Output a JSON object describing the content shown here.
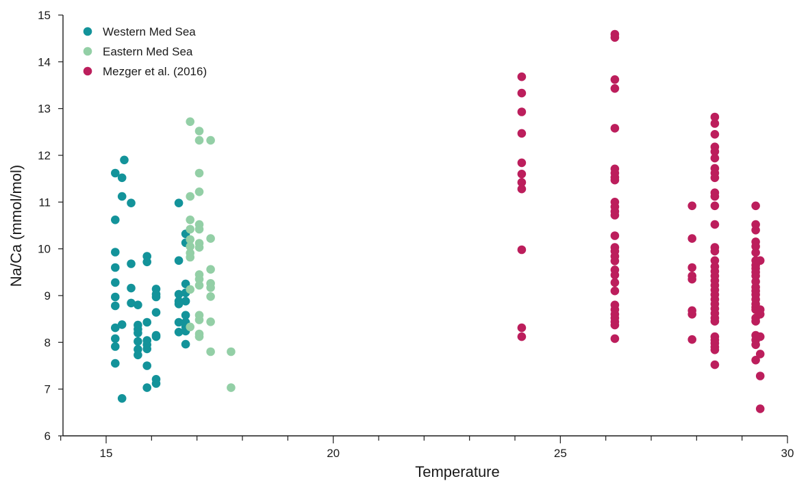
{
  "chart_data": {
    "type": "scatter",
    "title": "",
    "xlabel": "Temperature",
    "ylabel": "Na/Ca (mmol/mol)",
    "xlim": [
      14,
      30
    ],
    "ylim": [
      6,
      15
    ],
    "x_ticks": [
      15,
      20,
      25,
      30
    ],
    "y_ticks": [
      6,
      7,
      8,
      9,
      10,
      11,
      12,
      13,
      14,
      15
    ],
    "grid": false,
    "legend_position": "top-left",
    "series": [
      {
        "name": "Western Med Sea",
        "color": "#13939a",
        "points": [
          [
            15.2,
            11.62
          ],
          [
            15.2,
            10.62
          ],
          [
            15.2,
            9.93
          ],
          [
            15.2,
            9.6
          ],
          [
            15.2,
            9.28
          ],
          [
            15.2,
            8.97
          ],
          [
            15.2,
            8.78
          ],
          [
            15.2,
            8.31
          ],
          [
            15.2,
            8.08
          ],
          [
            15.2,
            7.91
          ],
          [
            15.2,
            7.55
          ],
          [
            15.35,
            11.52
          ],
          [
            15.35,
            11.12
          ],
          [
            15.35,
            8.38
          ],
          [
            15.35,
            6.8
          ],
          [
            15.4,
            11.9
          ],
          [
            15.55,
            10.98
          ],
          [
            15.55,
            9.68
          ],
          [
            15.55,
            9.16
          ],
          [
            15.55,
            8.84
          ],
          [
            15.7,
            8.8
          ],
          [
            15.7,
            8.37
          ],
          [
            15.7,
            8.28
          ],
          [
            15.7,
            8.2
          ],
          [
            15.7,
            8.02
          ],
          [
            15.7,
            7.85
          ],
          [
            15.7,
            7.73
          ],
          [
            15.9,
            9.84
          ],
          [
            15.9,
            9.72
          ],
          [
            15.9,
            8.43
          ],
          [
            15.9,
            8.04
          ],
          [
            15.9,
            7.95
          ],
          [
            15.9,
            7.86
          ],
          [
            15.9,
            7.5
          ],
          [
            15.9,
            7.03
          ],
          [
            16.1,
            9.14
          ],
          [
            16.1,
            9.03
          ],
          [
            16.1,
            8.97
          ],
          [
            16.1,
            8.64
          ],
          [
            16.1,
            8.15
          ],
          [
            16.1,
            8.12
          ],
          [
            16.1,
            7.21
          ],
          [
            16.1,
            7.12
          ],
          [
            16.6,
            10.98
          ],
          [
            16.6,
            9.75
          ],
          [
            16.6,
            9.03
          ],
          [
            16.6,
            8.88
          ],
          [
            16.6,
            8.82
          ],
          [
            16.6,
            8.43
          ],
          [
            16.6,
            8.22
          ],
          [
            16.75,
            10.32
          ],
          [
            16.75,
            10.13
          ],
          [
            16.75,
            9.25
          ],
          [
            16.75,
            9.06
          ],
          [
            16.75,
            8.88
          ],
          [
            16.75,
            8.58
          ],
          [
            16.75,
            8.43
          ],
          [
            16.75,
            8.33
          ],
          [
            16.75,
            8.24
          ],
          [
            16.75,
            7.96
          ]
        ]
      },
      {
        "name": "Eastern Med Sea",
        "color": "#93cfa6",
        "points": [
          [
            16.85,
            12.72
          ],
          [
            16.85,
            11.12
          ],
          [
            16.85,
            10.62
          ],
          [
            16.85,
            10.42
          ],
          [
            16.85,
            10.2
          ],
          [
            16.85,
            10.05
          ],
          [
            16.85,
            9.91
          ],
          [
            16.85,
            9.82
          ],
          [
            16.85,
            9.13
          ],
          [
            16.85,
            8.33
          ],
          [
            17.05,
            12.52
          ],
          [
            17.05,
            12.32
          ],
          [
            17.05,
            11.62
          ],
          [
            17.05,
            11.22
          ],
          [
            17.05,
            10.52
          ],
          [
            17.05,
            10.42
          ],
          [
            17.05,
            10.12
          ],
          [
            17.05,
            10.03
          ],
          [
            17.05,
            9.45
          ],
          [
            17.05,
            9.35
          ],
          [
            17.05,
            9.22
          ],
          [
            17.05,
            8.58
          ],
          [
            17.05,
            8.48
          ],
          [
            17.05,
            8.18
          ],
          [
            17.05,
            8.12
          ],
          [
            17.3,
            12.32
          ],
          [
            17.3,
            10.22
          ],
          [
            17.3,
            9.56
          ],
          [
            17.3,
            9.26
          ],
          [
            17.3,
            9.17
          ],
          [
            17.3,
            8.98
          ],
          [
            17.3,
            8.44
          ],
          [
            17.3,
            7.8
          ],
          [
            17.75,
            7.8
          ],
          [
            17.75,
            7.03
          ]
        ]
      },
      {
        "name": "Mezger et al. (2016)",
        "color": "#bc1e5c",
        "points": [
          [
            24.15,
            13.68
          ],
          [
            24.15,
            13.33
          ],
          [
            24.15,
            12.93
          ],
          [
            24.15,
            12.47
          ],
          [
            24.15,
            11.84
          ],
          [
            24.15,
            11.6
          ],
          [
            24.15,
            11.42
          ],
          [
            24.15,
            11.28
          ],
          [
            24.15,
            9.98
          ],
          [
            24.15,
            8.31
          ],
          [
            24.15,
            8.12
          ],
          [
            26.2,
            14.59
          ],
          [
            26.2,
            14.52
          ],
          [
            26.2,
            13.62
          ],
          [
            26.2,
            13.43
          ],
          [
            26.2,
            12.58
          ],
          [
            26.2,
            11.71
          ],
          [
            26.2,
            11.62
          ],
          [
            26.2,
            11.53
          ],
          [
            26.2,
            11.47
          ],
          [
            26.2,
            11.0
          ],
          [
            26.2,
            10.9
          ],
          [
            26.2,
            10.8
          ],
          [
            26.2,
            10.72
          ],
          [
            26.2,
            10.28
          ],
          [
            26.2,
            10.03
          ],
          [
            26.2,
            9.95
          ],
          [
            26.2,
            9.84
          ],
          [
            26.2,
            9.74
          ],
          [
            26.2,
            9.55
          ],
          [
            26.2,
            9.44
          ],
          [
            26.2,
            9.28
          ],
          [
            26.2,
            9.1
          ],
          [
            26.2,
            8.8
          ],
          [
            26.2,
            8.7
          ],
          [
            26.2,
            8.6
          ],
          [
            26.2,
            8.52
          ],
          [
            26.2,
            8.44
          ],
          [
            26.2,
            8.37
          ],
          [
            26.2,
            8.08
          ],
          [
            27.9,
            10.92
          ],
          [
            27.9,
            10.22
          ],
          [
            27.9,
            9.6
          ],
          [
            27.9,
            9.42
          ],
          [
            27.9,
            9.35
          ],
          [
            27.9,
            8.68
          ],
          [
            27.9,
            8.6
          ],
          [
            27.9,
            8.06
          ],
          [
            28.4,
            12.82
          ],
          [
            28.4,
            12.68
          ],
          [
            28.4,
            12.45
          ],
          [
            28.4,
            12.18
          ],
          [
            28.4,
            12.08
          ],
          [
            28.4,
            11.94
          ],
          [
            28.4,
            11.72
          ],
          [
            28.4,
            11.62
          ],
          [
            28.4,
            11.52
          ],
          [
            28.4,
            11.2
          ],
          [
            28.4,
            11.12
          ],
          [
            28.4,
            10.92
          ],
          [
            28.4,
            10.52
          ],
          [
            28.4,
            10.03
          ],
          [
            28.4,
            9.95
          ],
          [
            28.4,
            9.75
          ],
          [
            28.4,
            9.62
          ],
          [
            28.4,
            9.52
          ],
          [
            28.4,
            9.42
          ],
          [
            28.4,
            9.32
          ],
          [
            28.4,
            9.22
          ],
          [
            28.4,
            9.12
          ],
          [
            28.4,
            9.02
          ],
          [
            28.4,
            8.92
          ],
          [
            28.4,
            8.82
          ],
          [
            28.4,
            8.72
          ],
          [
            28.4,
            8.62
          ],
          [
            28.4,
            8.52
          ],
          [
            28.4,
            8.45
          ],
          [
            28.4,
            8.12
          ],
          [
            28.4,
            8.05
          ],
          [
            28.4,
            7.98
          ],
          [
            28.4,
            7.9
          ],
          [
            28.4,
            7.84
          ],
          [
            28.4,
            7.52
          ],
          [
            29.3,
            10.92
          ],
          [
            29.3,
            10.52
          ],
          [
            29.3,
            10.4
          ],
          [
            29.3,
            10.15
          ],
          [
            29.3,
            10.05
          ],
          [
            29.3,
            9.92
          ],
          [
            29.3,
            9.75
          ],
          [
            29.3,
            9.65
          ],
          [
            29.3,
            9.58
          ],
          [
            29.3,
            9.5
          ],
          [
            29.3,
            9.42
          ],
          [
            29.3,
            9.3
          ],
          [
            29.3,
            9.18
          ],
          [
            29.3,
            9.1
          ],
          [
            29.3,
            9.02
          ],
          [
            29.3,
            8.92
          ],
          [
            29.3,
            8.82
          ],
          [
            29.3,
            8.75
          ],
          [
            29.3,
            8.7
          ],
          [
            29.3,
            8.52
          ],
          [
            29.3,
            8.45
          ],
          [
            29.3,
            8.15
          ],
          [
            29.3,
            8.05
          ],
          [
            29.3,
            7.95
          ],
          [
            29.3,
            7.62
          ],
          [
            29.4,
            9.75
          ],
          [
            29.4,
            8.7
          ],
          [
            29.4,
            8.6
          ],
          [
            29.4,
            8.12
          ],
          [
            29.4,
            7.75
          ],
          [
            29.4,
            7.28
          ],
          [
            29.4,
            6.58
          ]
        ]
      }
    ]
  }
}
